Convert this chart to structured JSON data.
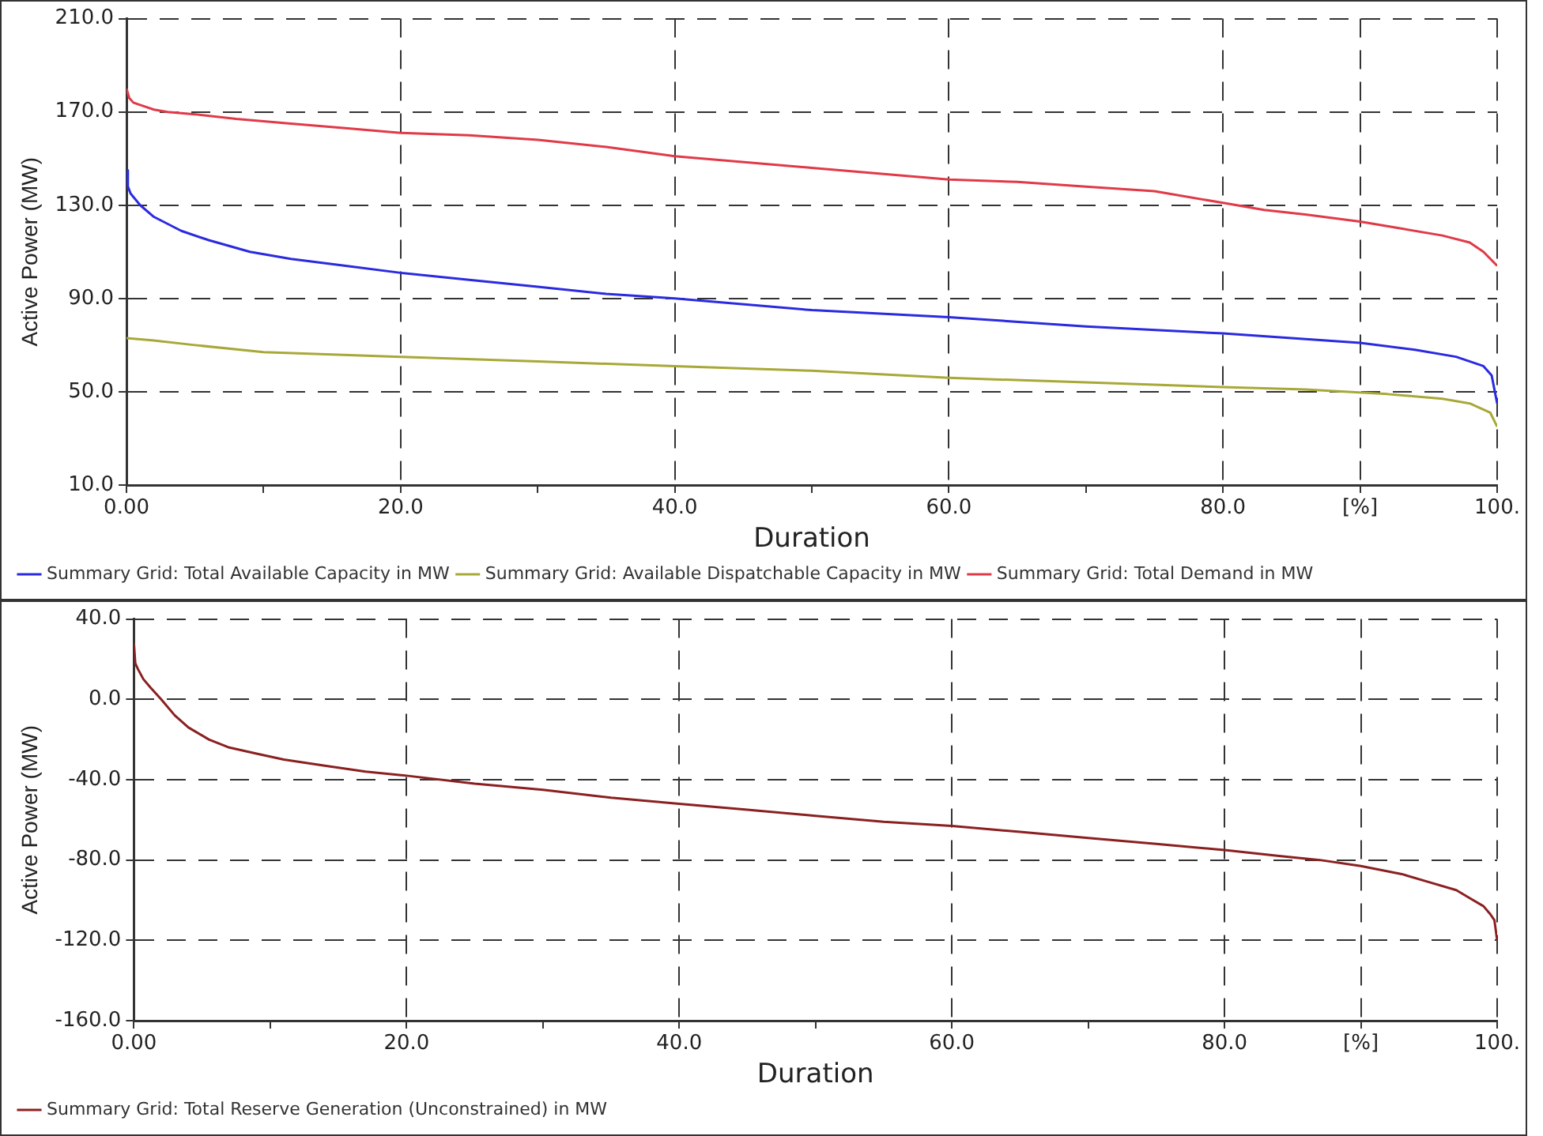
{
  "chart_data": [
    {
      "type": "line",
      "xlabel": "Duration",
      "ylabel": "Active Power (MW)",
      "xlim": [
        0,
        100
      ],
      "ylim": [
        10,
        210
      ],
      "xticks": [
        {
          "value": 0,
          "label": "0.00"
        },
        {
          "value": 10,
          "label": null
        },
        {
          "value": 20,
          "label": "20.0"
        },
        {
          "value": 30,
          "label": null
        },
        {
          "value": 40,
          "label": "40.0"
        },
        {
          "value": 50,
          "label": null
        },
        {
          "value": 60,
          "label": "60.0"
        },
        {
          "value": 70,
          "label": null
        },
        {
          "value": 80,
          "label": "80.0"
        },
        {
          "value": 90,
          "label": "[%]"
        },
        {
          "value": 100,
          "label": "100."
        }
      ],
      "yticks": [
        {
          "value": 10,
          "label": "10.0"
        },
        {
          "value": 50,
          "label": "50.0"
        },
        {
          "value": 90,
          "label": "90.0"
        },
        {
          "value": 130,
          "label": "130.0"
        },
        {
          "value": 170,
          "label": "170.0"
        },
        {
          "value": 210,
          "label": "210.0"
        }
      ],
      "grid": true,
      "line_style": "solid",
      "marker": "none",
      "legend": "bottom left",
      "series": [
        {
          "name": "Summary Grid: Total Available Capacity in MW",
          "color": "#2a2ae0",
          "x": [
            0,
            0.1,
            0.3,
            1,
            2,
            4,
            6,
            9,
            12,
            16,
            20,
            25,
            30,
            35,
            40,
            50,
            60,
            70,
            80,
            85,
            90,
            94,
            97,
            99,
            99.6,
            100
          ],
          "values": [
            145,
            138,
            135,
            130,
            125,
            119,
            115,
            110,
            107,
            104,
            101,
            98,
            95,
            92,
            90,
            85,
            82,
            78,
            75,
            73,
            71,
            68,
            65,
            61,
            57,
            45
          ]
        },
        {
          "name": "Summary Grid: Available Dispatchable Capacity in MW",
          "color": "#a8a838",
          "x": [
            0,
            2,
            5,
            10,
            15,
            20,
            30,
            40,
            50,
            60,
            70,
            80,
            86,
            92,
            96,
            98,
            99.5,
            100
          ],
          "values": [
            73,
            72,
            70,
            67,
            66,
            65,
            63,
            61,
            59,
            56,
            54,
            52,
            51,
            49,
            47,
            45,
            41,
            35
          ]
        },
        {
          "name": "Summary Grid: Total Demand in MW",
          "color": "#e03a48",
          "x": [
            0,
            0.2,
            0.5,
            1,
            2,
            3,
            5,
            8,
            12,
            16,
            20,
            25,
            30,
            35,
            40,
            50,
            60,
            65,
            70,
            75,
            80,
            83,
            86,
            90,
            93,
            96,
            98,
            99,
            100
          ],
          "values": [
            180,
            176,
            174,
            173,
            171,
            170,
            169,
            167,
            165,
            163,
            161,
            160,
            158,
            155,
            151,
            146,
            141,
            140,
            138,
            136,
            131,
            128,
            126,
            123,
            120,
            117,
            114,
            110,
            104
          ]
        }
      ]
    },
    {
      "type": "line",
      "xlabel": "Duration",
      "ylabel": "Active Power (MW)",
      "xlim": [
        0,
        100
      ],
      "ylim": [
        -160,
        40
      ],
      "xticks": [
        {
          "value": 0,
          "label": "0.00"
        },
        {
          "value": 10,
          "label": null
        },
        {
          "value": 20,
          "label": "20.0"
        },
        {
          "value": 30,
          "label": null
        },
        {
          "value": 40,
          "label": "40.0"
        },
        {
          "value": 50,
          "label": null
        },
        {
          "value": 60,
          "label": "60.0"
        },
        {
          "value": 70,
          "label": null
        },
        {
          "value": 80,
          "label": "80.0"
        },
        {
          "value": 90,
          "label": "[%]"
        },
        {
          "value": 100,
          "label": "100."
        }
      ],
      "yticks": [
        {
          "value": -160,
          "label": "-160.0"
        },
        {
          "value": -120,
          "label": "-120.0"
        },
        {
          "value": -80,
          "label": "-80.0"
        },
        {
          "value": -40,
          "label": "-40.0"
        },
        {
          "value": 0,
          "label": "0.0"
        },
        {
          "value": 40,
          "label": "40.0"
        }
      ],
      "grid": true,
      "line_style": "solid",
      "marker": "none",
      "legend": "bottom left",
      "series": [
        {
          "name": "Summary Grid: Total Reserve Generation (Unconstrained) in MW",
          "color": "#8b2020",
          "x": [
            0,
            0.1,
            0.3,
            0.7,
            1.2,
            2,
            3,
            4,
            5.5,
            7,
            9,
            11,
            14,
            17,
            20,
            25,
            30,
            35,
            40,
            45,
            50,
            55,
            60,
            65,
            70,
            75,
            80,
            84,
            87,
            90,
            93,
            95,
            97,
            98,
            99,
            99.5,
            99.8,
            100
          ],
          "values": [
            28,
            18,
            15,
            10,
            6,
            0,
            -8,
            -14,
            -20,
            -24,
            -27,
            -30,
            -33,
            -36,
            -38,
            -42,
            -45,
            -49,
            -52,
            -55,
            -58,
            -61,
            -63,
            -66,
            -69,
            -72,
            -75,
            -78,
            -80,
            -83,
            -87,
            -91,
            -95,
            -99,
            -103,
            -107,
            -110,
            -120
          ]
        }
      ]
    }
  ]
}
